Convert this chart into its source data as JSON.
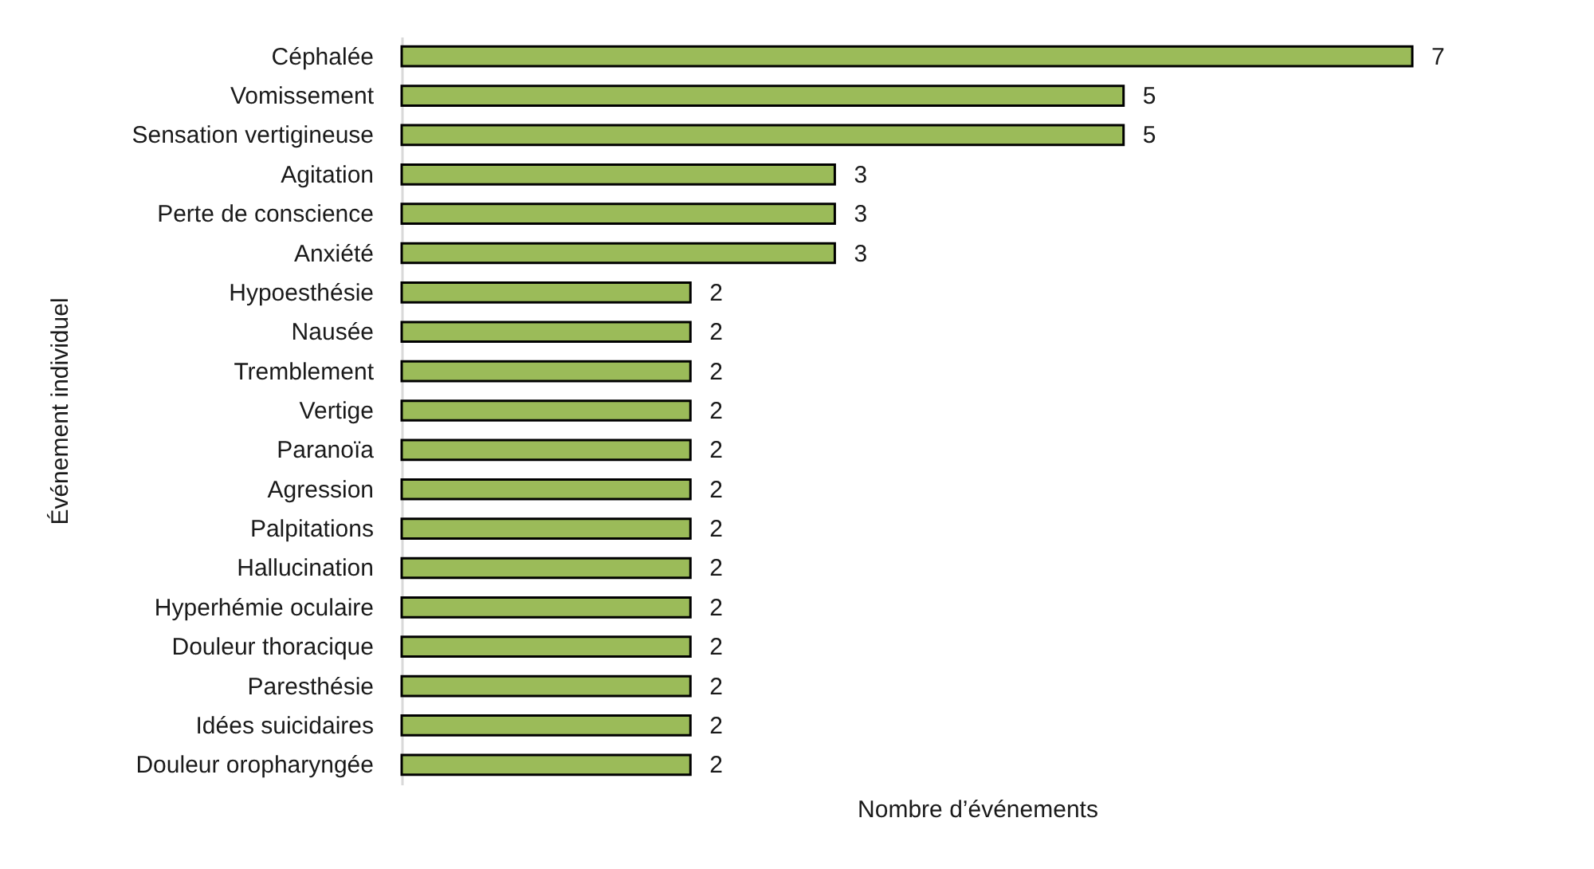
{
  "chart_data": {
    "type": "bar",
    "orientation": "horizontal",
    "xlabel": "Nombre d’événements",
    "ylabel": "Événement individuel",
    "categories": [
      "Céphalée",
      "Vomissement",
      "Sensation vertigineuse",
      "Agitation ",
      "Perte de conscience",
      "Anxiété",
      "Hypoesthésie",
      "Nausée",
      "Tremblement",
      "Vertige",
      "Paranoïa",
      "Agression",
      "Palpitations",
      "Hallucination",
      "Hyperhémie oculaire",
      "Douleur thoracique",
      "Paresthésie",
      "Idées suicidaires",
      "Douleur oropharyngée"
    ],
    "values": [
      7,
      5,
      5,
      3,
      3,
      3,
      2,
      2,
      2,
      2,
      2,
      2,
      2,
      2,
      2,
      2,
      2,
      2,
      2
    ],
    "color": "#9bbb59",
    "data_labels": true
  }
}
